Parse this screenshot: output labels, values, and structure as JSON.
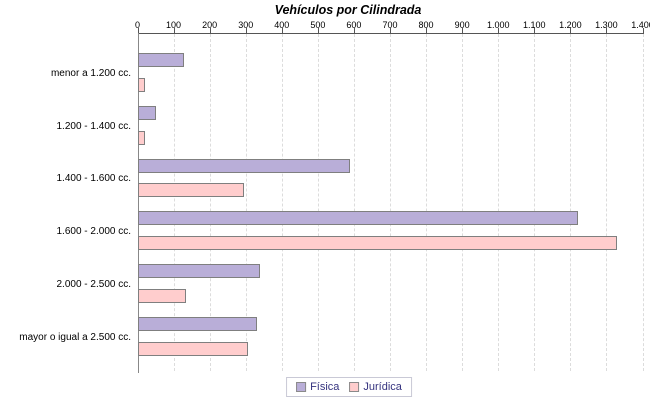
{
  "title": "Vehículos por Cilindrada",
  "chart_data": {
    "type": "bar",
    "orientation": "horizontal",
    "title": "Vehículos por Cilindrada",
    "categories": [
      "menor a 1.200 cc.",
      "1.200 - 1.400 cc.",
      "1.400 - 1.600 cc.",
      "1.600 - 2.000 cc.",
      "2.000 - 2.500 cc.",
      "mayor o igual a 2.500 cc."
    ],
    "series": [
      {
        "name": "Física",
        "color": "#b9aed8",
        "values": [
          130,
          50,
          590,
          1220,
          340,
          330
        ]
      },
      {
        "name": "Jurídica",
        "color": "#ffcdcd",
        "values": [
          20,
          20,
          295,
          1330,
          135,
          305
        ]
      }
    ],
    "xlim": [
      0,
      1400
    ],
    "x_tick_step": 100,
    "x_tick_labels": [
      "0",
      "100",
      "200",
      "300",
      "400",
      "500",
      "600",
      "700",
      "800",
      "900",
      "1.000",
      "1.100",
      "1.200",
      "1.300",
      "1.400"
    ],
    "grid": "vertical-dashed",
    "legend_position": "bottom"
  },
  "colors": {
    "series_fisica": "#b9aed8",
    "series_juridica": "#ffcdcd",
    "bar_border": "#7f7f7f",
    "grid": "#dcdcdc",
    "axis": "#555555",
    "legend_text": "#35337f",
    "legend_border": "#c9c9d6",
    "title_text": "#000000"
  }
}
